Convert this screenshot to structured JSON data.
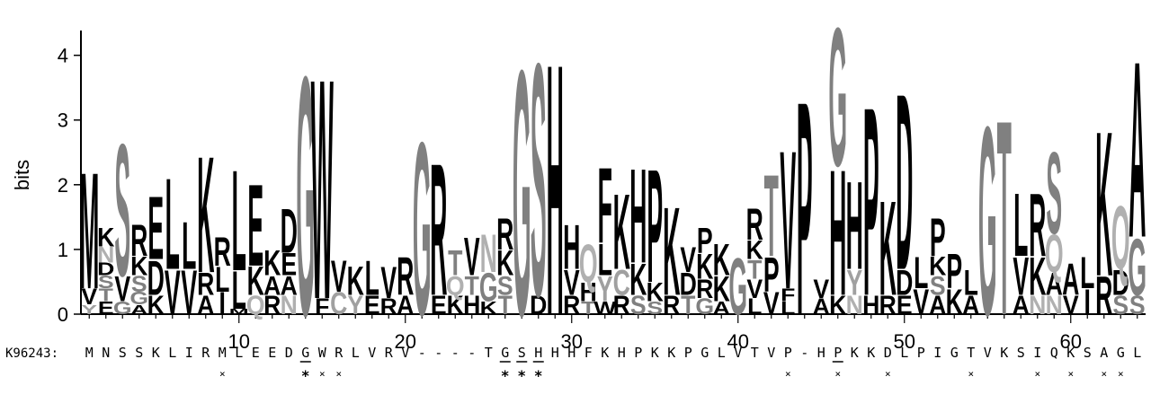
{
  "chart_data": {
    "type": "sequence-logo",
    "ylabel": "bits",
    "ylim": [
      0,
      4.3
    ],
    "yticks": [
      0,
      1,
      2,
      3,
      4
    ],
    "xlim": [
      0.5,
      64.5
    ],
    "xticks": [
      10,
      20,
      30,
      40,
      50,
      60
    ],
    "positions": [
      {
        "pos": 1,
        "stack": [
          [
            "V",
            0.25
          ],
          [
            "Y",
            0.15
          ],
          [
            "M",
            1.85
          ]
        ]
      },
      {
        "pos": 2,
        "stack": [
          [
            "N",
            0.25
          ],
          [
            "E",
            0.2
          ],
          [
            "T",
            0.2
          ],
          [
            "S",
            0.2
          ],
          [
            "D",
            0.2
          ],
          [
            "K",
            0.3
          ]
        ]
      },
      {
        "pos": 3,
        "stack": [
          [
            "G",
            0.2
          ],
          [
            "V",
            0.4
          ],
          [
            "S",
            2.1
          ]
        ]
      },
      {
        "pos": 4,
        "stack": [
          [
            "A",
            0.15
          ],
          [
            "G",
            0.2
          ],
          [
            "S",
            0.25
          ],
          [
            "K",
            0.3
          ],
          [
            "R",
            0.5
          ]
        ]
      },
      {
        "pos": 5,
        "stack": [
          [
            "K",
            0.3
          ],
          [
            "D",
            0.55
          ],
          [
            "E",
            1.0
          ]
        ]
      },
      {
        "pos": 6,
        "stack": [
          [
            "V",
            0.7
          ],
          [
            "L",
            1.45
          ]
        ]
      },
      {
        "pos": 7,
        "stack": [
          [
            "L",
            0.75
          ],
          [
            "V",
            0.7
          ]
        ]
      },
      {
        "pos": 8,
        "stack": [
          [
            "A",
            0.3
          ],
          [
            "R",
            0.35
          ],
          [
            "K",
            1.85
          ]
        ]
      },
      {
        "pos": 9,
        "stack": [
          [
            "I",
            0.35
          ],
          [
            "L",
            0.4
          ],
          [
            "R",
            0.45
          ]
        ]
      },
      {
        "pos": 10,
        "stack": [
          [
            "M",
            0.08
          ],
          [
            "L",
            0.6
          ],
          [
            "L",
            1.6
          ]
        ]
      },
      {
        "pos": 11,
        "stack": [
          [
            "Q",
            0.3
          ],
          [
            "K",
            0.45
          ],
          [
            "E",
            1.3
          ]
        ]
      },
      {
        "pos": 12,
        "stack": [
          [
            "R",
            0.3
          ],
          [
            "K",
            0.4
          ],
          [
            "A",
            0.3
          ]
        ]
      },
      {
        "pos": 13,
        "stack": [
          [
            "E",
            0.35
          ],
          [
            "N",
            0.3
          ],
          [
            "A",
            0.3
          ],
          [
            "D",
            0.7
          ]
        ]
      },
      {
        "pos": 14,
        "stack": [
          [
            "G",
            3.8
          ]
        ]
      },
      {
        "pos": 15,
        "stack": [
          [
            "F",
            0.25
          ],
          [
            "W",
            3.5
          ]
        ]
      },
      {
        "pos": 16,
        "stack": [
          [
            "C",
            0.35
          ],
          [
            "V",
            0.5
          ]
        ]
      },
      {
        "pos": 17,
        "stack": [
          [
            "K",
            0.45
          ],
          [
            "Y",
            0.3
          ]
        ]
      },
      {
        "pos": 18,
        "stack": [
          [
            "E",
            0.3
          ],
          [
            "L",
            0.55
          ]
        ]
      },
      {
        "pos": 19,
        "stack": [
          [
            "R",
            0.25
          ],
          [
            "V",
            0.5
          ]
        ]
      },
      {
        "pos": 20,
        "stack": [
          [
            "A",
            0.3
          ],
          [
            "R",
            0.6
          ]
        ]
      },
      {
        "pos": 21,
        "stack": [
          [
            "G",
            2.75
          ]
        ]
      },
      {
        "pos": 22,
        "stack": [
          [
            "E",
            0.3
          ],
          [
            "R",
            2.1
          ]
        ]
      },
      {
        "pos": 23,
        "stack": [
          [
            "K",
            0.3
          ],
          [
            "Q",
            0.3
          ],
          [
            "T",
            0.4
          ]
        ]
      },
      {
        "pos": 24,
        "stack": [
          [
            "H",
            0.3
          ],
          [
            "T",
            0.3
          ],
          [
            "V",
            0.6
          ]
        ]
      },
      {
        "pos": 25,
        "stack": [
          [
            "K",
            0.2
          ],
          [
            "G",
            0.45
          ],
          [
            "N",
            0.6
          ]
        ]
      },
      {
        "pos": 26,
        "stack": [
          [
            "T",
            0.3
          ],
          [
            "S",
            0.3
          ],
          [
            "R",
            0.5
          ],
          [
            "K",
            0.4
          ]
        ]
      },
      {
        "pos": 27,
        "stack": [
          [
            "G",
            3.9
          ]
        ]
      },
      {
        "pos": 28,
        "stack": [
          [
            "D",
            0.3
          ],
          [
            "S",
            3.7
          ]
        ]
      },
      {
        "pos": 29,
        "stack": [
          [
            "H",
            4.0
          ]
        ]
      },
      {
        "pos": 30,
        "stack": [
          [
            "R",
            0.3
          ],
          [
            "V",
            0.4
          ],
          [
            "H",
            0.7
          ]
        ]
      },
      {
        "pos": 31,
        "stack": [
          [
            "Q",
            0.6
          ],
          [
            "H",
            0.3
          ],
          [
            "T",
            0.2
          ]
        ]
      },
      {
        "pos": 32,
        "stack": [
          [
            "W",
            0.2
          ],
          [
            "L",
            0.5
          ],
          [
            "Y",
            0.4
          ],
          [
            "F",
            1.2
          ]
        ]
      },
      {
        "pos": 33,
        "stack": [
          [
            "R",
            0.3
          ],
          [
            "C",
            0.4
          ],
          [
            "K",
            1.2
          ]
        ]
      },
      {
        "pos": 34,
        "stack": [
          [
            "S",
            0.3
          ],
          [
            "K",
            0.5
          ],
          [
            "H",
            1.5
          ]
        ]
      },
      {
        "pos": 35,
        "stack": [
          [
            "S",
            0.2
          ],
          [
            "K",
            0.3
          ],
          [
            "P",
            1.8
          ]
        ]
      },
      {
        "pos": 36,
        "stack": [
          [
            "R",
            0.3
          ],
          [
            "K",
            1.4
          ]
        ]
      },
      {
        "pos": 37,
        "stack": [
          [
            "T",
            0.3
          ],
          [
            "D",
            0.35
          ],
          [
            "V",
            0.4
          ]
        ]
      },
      {
        "pos": 38,
        "stack": [
          [
            "G",
            0.25
          ],
          [
            "R",
            0.3
          ],
          [
            "K",
            0.4
          ],
          [
            "P",
            0.4
          ]
        ]
      },
      {
        "pos": 39,
        "stack": [
          [
            "A",
            0.2
          ],
          [
            "K",
            0.4
          ],
          [
            "K",
            0.5
          ]
        ]
      },
      {
        "pos": 40,
        "stack": [
          [
            "G",
            0.9
          ]
        ]
      },
      {
        "pos": 41,
        "stack": [
          [
            "L",
            0.25
          ],
          [
            "V",
            0.3
          ],
          [
            "T",
            0.3
          ],
          [
            "K",
            0.3
          ],
          [
            "R",
            0.5
          ]
        ]
      },
      {
        "pos": 42,
        "stack": [
          [
            "V",
            0.35
          ],
          [
            "P",
            0.55
          ],
          [
            "T",
            1.3
          ]
        ]
      },
      {
        "pos": 43,
        "stack": [
          [
            "L",
            0.2
          ],
          [
            "F",
            0.2
          ],
          [
            "V",
            2.2
          ]
        ]
      },
      {
        "pos": 44,
        "stack": [
          [
            "P",
            3.4
          ]
        ]
      },
      {
        "pos": 45,
        "stack": [
          [
            "A",
            0.25
          ],
          [
            "V",
            0.3
          ]
        ]
      },
      {
        "pos": 46,
        "stack": [
          [
            "K",
            0.3
          ],
          [
            "H",
            2.0
          ],
          [
            "G",
            2.2
          ]
        ]
      },
      {
        "pos": 47,
        "stack": [
          [
            "N",
            0.3
          ],
          [
            "Y",
            0.4
          ],
          [
            "H",
            1.4
          ]
        ]
      },
      {
        "pos": 48,
        "stack": [
          [
            "H",
            0.3
          ],
          [
            "P",
            3.0
          ]
        ]
      },
      {
        "pos": 49,
        "stack": [
          [
            "R",
            0.3
          ],
          [
            "K",
            1.5
          ]
        ]
      },
      {
        "pos": 50,
        "stack": [
          [
            "E",
            0.3
          ],
          [
            "D",
            0.4
          ],
          [
            "D",
            2.8
          ]
        ]
      },
      {
        "pos": 51,
        "stack": [
          [
            "V",
            0.4
          ],
          [
            "L",
            0.5
          ]
        ]
      },
      {
        "pos": 52,
        "stack": [
          [
            "A",
            0.3
          ],
          [
            "S",
            0.3
          ],
          [
            "K",
            0.3
          ],
          [
            "P",
            0.6
          ]
        ]
      },
      {
        "pos": 53,
        "stack": [
          [
            "K",
            0.4
          ],
          [
            "P",
            0.55
          ]
        ]
      },
      {
        "pos": 54,
        "stack": [
          [
            "A",
            0.3
          ],
          [
            "L",
            0.4
          ]
        ]
      },
      {
        "pos": 55,
        "stack": [
          [
            "G",
            3.0
          ]
        ]
      },
      {
        "pos": 56,
        "stack": [
          [
            "T",
            3.1
          ]
        ]
      },
      {
        "pos": 57,
        "stack": [
          [
            "A",
            0.3
          ],
          [
            "V",
            0.6
          ],
          [
            "L",
            1.0
          ]
        ]
      },
      {
        "pos": 58,
        "stack": [
          [
            "N",
            0.3
          ],
          [
            "K",
            0.6
          ],
          [
            "R",
            1.0
          ]
        ]
      },
      {
        "pos": 59,
        "stack": [
          [
            "A",
            0.35
          ],
          [
            "N",
            0.3
          ],
          [
            "Q",
            0.6
          ],
          [
            "S",
            1.3
          ]
        ]
      },
      {
        "pos": 60,
        "stack": [
          [
            "V",
            0.3
          ],
          [
            "A",
            0.5
          ]
        ]
      },
      {
        "pos": 61,
        "stack": [
          [
            "I",
            0.4
          ],
          [
            "L",
            0.5
          ]
        ]
      },
      {
        "pos": 62,
        "stack": [
          [
            "R",
            0.6
          ],
          [
            "K",
            2.3
          ]
        ]
      },
      {
        "pos": 63,
        "stack": [
          [
            "S",
            0.3
          ],
          [
            "D",
            0.4
          ],
          [
            "Q",
            1.0
          ]
        ]
      },
      {
        "pos": 64,
        "stack": [
          [
            "S",
            0.3
          ],
          [
            "A",
            2.8
          ],
          [
            "G",
            0.9
          ]
        ]
      }
    ],
    "color_map": {
      "G": "#808080",
      "S": "#808080",
      "T": "#808080",
      "Y": "#a0a0a0",
      "C": "#a0a0a0",
      "N": "#b0b0b0",
      "Q": "#b0b0b0",
      "default": "#000000"
    },
    "sequence_label": "K96243:",
    "sequence": [
      "M",
      "N",
      "S",
      "S",
      "K",
      "L",
      "I",
      "R",
      "M",
      "L",
      "E",
      "E",
      "D",
      "G",
      "W",
      "R",
      "L",
      "V",
      "R",
      "V",
      "-",
      "-",
      "-",
      "-",
      "T",
      "G",
      "S",
      "H",
      "H",
      "H",
      "F",
      "K",
      "H",
      "P",
      "K",
      "K",
      "P",
      "G",
      "L",
      "V",
      "T",
      "V",
      "P",
      "-",
      "H",
      "P",
      "K",
      "K",
      "D",
      "L",
      "P",
      "I",
      "G",
      "T",
      "V",
      "K",
      "S",
      "I",
      "Q",
      "K",
      "S",
      "A",
      "G",
      "L"
    ],
    "underlined_indices": [
      13,
      25,
      26,
      27,
      45
    ],
    "markers": {
      "star": [
        13,
        25,
        26,
        27
      ],
      "x": [
        8,
        14,
        15,
        42,
        45,
        48,
        53,
        57,
        59,
        61,
        62
      ]
    }
  }
}
